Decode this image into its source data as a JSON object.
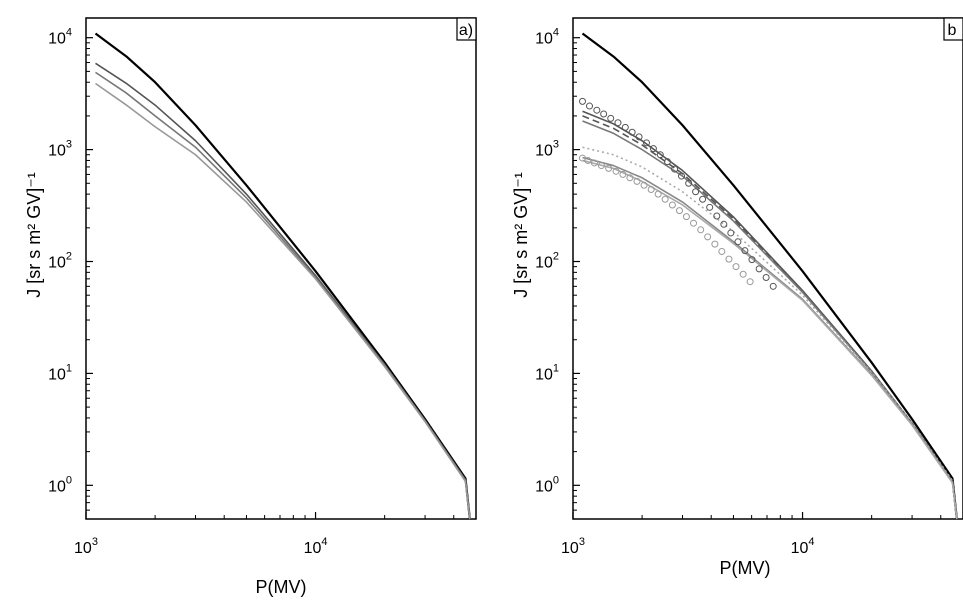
{
  "chart_data": [
    {
      "type": "line",
      "panel_label": "a)",
      "xlabel": "P(MV)",
      "ylabel": "J [sr s m² GV]⁻¹",
      "x_scale": "log",
      "y_scale": "log",
      "xlim": [
        1000,
        50000
      ],
      "ylim": [
        0.5,
        15000
      ],
      "x_ticks": [
        {
          "base": "10",
          "exp": "3"
        },
        {
          "base": "10",
          "exp": "4"
        }
      ],
      "y_ticks": [
        {
          "base": "10",
          "exp": "0"
        },
        {
          "base": "10",
          "exp": "1"
        },
        {
          "base": "10",
          "exp": "2"
        },
        {
          "base": "10",
          "exp": "3"
        },
        {
          "base": "10",
          "exp": "4"
        }
      ],
      "grid": false,
      "series": [
        {
          "color": "#000000",
          "style": "solid",
          "points": [
            [
              1100,
              10900
            ],
            [
              1500,
              6800
            ],
            [
              2000,
              4000
            ],
            [
              3000,
              1650
            ],
            [
              5000,
              480
            ],
            [
              10000,
              82
            ],
            [
              20000,
              12.5
            ],
            [
              30000,
              3.9
            ],
            [
              45000,
              1.15
            ],
            [
              47000,
              0.5
            ]
          ]
        },
        {
          "color": "#555555",
          "style": "solid",
          "points": [
            [
              1100,
              5900
            ],
            [
              1500,
              3900
            ],
            [
              2000,
              2500
            ],
            [
              3000,
              1200
            ],
            [
              5000,
              400
            ],
            [
              10000,
              75
            ],
            [
              20000,
              12
            ],
            [
              30000,
              3.8
            ],
            [
              45000,
              1.12
            ],
            [
              47000,
              0.5
            ]
          ]
        },
        {
          "color": "#777777",
          "style": "solid",
          "points": [
            [
              1100,
              4900
            ],
            [
              1500,
              3200
            ],
            [
              2000,
              2000
            ],
            [
              3000,
              1050
            ],
            [
              5000,
              370
            ],
            [
              10000,
              72
            ],
            [
              20000,
              11.8
            ],
            [
              30000,
              3.75
            ],
            [
              45000,
              1.1
            ],
            [
              47000,
              0.5
            ]
          ]
        },
        {
          "color": "#999999",
          "style": "solid",
          "points": [
            [
              1100,
              3900
            ],
            [
              1500,
              2500
            ],
            [
              2000,
              1600
            ],
            [
              3000,
              900
            ],
            [
              5000,
              340
            ],
            [
              10000,
              70
            ],
            [
              20000,
              11.5
            ],
            [
              30000,
              3.7
            ],
            [
              45000,
              1.08
            ],
            [
              47000,
              0.5
            ]
          ]
        }
      ]
    },
    {
      "type": "line",
      "panel_label": "b",
      "xlabel": "P(MV)",
      "ylabel": "J [sr s m² GV]⁻¹",
      "x_scale": "log",
      "y_scale": "log",
      "xlim": [
        1000,
        50000
      ],
      "ylim": [
        0.5,
        15000
      ],
      "x_ticks": [
        {
          "base": "10",
          "exp": "3"
        },
        {
          "base": "10",
          "exp": "4"
        }
      ],
      "y_ticks": [
        {
          "base": "10",
          "exp": "0"
        },
        {
          "base": "10",
          "exp": "1"
        },
        {
          "base": "10",
          "exp": "2"
        },
        {
          "base": "10",
          "exp": "3"
        },
        {
          "base": "10",
          "exp": "4"
        }
      ],
      "grid": false,
      "series": [
        {
          "color": "#000000",
          "style": "solid",
          "points": [
            [
              1100,
              10900
            ],
            [
              1500,
              6800
            ],
            [
              2000,
              4000
            ],
            [
              3000,
              1650
            ],
            [
              5000,
              480
            ],
            [
              10000,
              82
            ],
            [
              20000,
              12.5
            ],
            [
              30000,
              3.9
            ],
            [
              45000,
              1.15
            ],
            [
              47000,
              0.5
            ]
          ]
        },
        {
          "color": "#555555",
          "style": "solid",
          "points": [
            [
              1100,
              2200
            ],
            [
              1500,
              1700
            ],
            [
              2000,
              1200
            ],
            [
              3000,
              650
            ],
            [
              5000,
              250
            ],
            [
              10000,
              55
            ],
            [
              20000,
              10.5
            ],
            [
              30000,
              3.6
            ],
            [
              45000,
              1.08
            ],
            [
              47000,
              0.5
            ]
          ]
        },
        {
          "color": "#555555",
          "style": "dashed",
          "points": [
            [
              1100,
              2000
            ],
            [
              1500,
              1550
            ],
            [
              2000,
              1100
            ],
            [
              3000,
              610
            ],
            [
              5000,
              240
            ],
            [
              10000,
              54
            ],
            [
              20000,
              10.4
            ],
            [
              30000,
              3.6
            ],
            [
              45000,
              1.08
            ],
            [
              47000,
              0.5
            ]
          ]
        },
        {
          "color": "#777777",
          "style": "solid",
          "points": [
            [
              1100,
              1800
            ],
            [
              1500,
              1400
            ],
            [
              2000,
              1000
            ],
            [
              3000,
              580
            ],
            [
              5000,
              230
            ],
            [
              10000,
              53
            ],
            [
              20000,
              10.3
            ],
            [
              30000,
              3.55
            ],
            [
              45000,
              1.07
            ],
            [
              47000,
              0.5
            ]
          ]
        },
        {
          "color": "#aaaaaa",
          "style": "dotted",
          "points": [
            [
              1100,
              1050
            ],
            [
              1500,
              900
            ],
            [
              2000,
              700
            ],
            [
              3000,
              420
            ],
            [
              5000,
              185
            ],
            [
              10000,
              50
            ],
            [
              20000,
              10.2
            ],
            [
              30000,
              3.6
            ],
            [
              45000,
              1.1
            ],
            [
              47000,
              0.5
            ]
          ]
        },
        {
          "color": "#888888",
          "style": "solid",
          "points": [
            [
              1100,
              850
            ],
            [
              1500,
              720
            ],
            [
              2000,
              560
            ],
            [
              3000,
              340
            ],
            [
              5000,
              150
            ],
            [
              10000,
              46
            ],
            [
              20000,
              9.8
            ],
            [
              30000,
              3.5
            ],
            [
              45000,
              1.06
            ],
            [
              47000,
              0.5
            ]
          ]
        },
        {
          "color": "#aaaaaa",
          "style": "solid",
          "points": [
            [
              1100,
              800
            ],
            [
              1500,
              680
            ],
            [
              2000,
              520
            ],
            [
              3000,
              320
            ],
            [
              5000,
              145
            ],
            [
              10000,
              45
            ],
            [
              20000,
              9.6
            ],
            [
              30000,
              3.45
            ],
            [
              45000,
              1.05
            ],
            [
              47000,
              0.5
            ]
          ]
        },
        {
          "color": "#555555",
          "style": "markers",
          "points": [
            [
              1100,
              2700
            ],
            [
              1180,
              2450
            ],
            [
              1270,
              2250
            ],
            [
              1360,
              2080
            ],
            [
              1460,
              1900
            ],
            [
              1570,
              1740
            ],
            [
              1690,
              1580
            ],
            [
              1810,
              1430
            ],
            [
              1940,
              1300
            ],
            [
              2090,
              1150
            ],
            [
              2240,
              1020
            ],
            [
              2400,
              900
            ],
            [
              2580,
              780
            ],
            [
              2770,
              670
            ],
            [
              2970,
              580
            ],
            [
              3190,
              500
            ],
            [
              3420,
              420
            ],
            [
              3670,
              360
            ],
            [
              3940,
              305
            ],
            [
              4230,
              255
            ],
            [
              4540,
              215
            ],
            [
              4870,
              180
            ],
            [
              5230,
              150
            ],
            [
              5610,
              125
            ],
            [
              6020,
              104
            ],
            [
              6470,
              86
            ],
            [
              6940,
              72
            ],
            [
              7450,
              60
            ]
          ]
        },
        {
          "color": "#999999",
          "style": "markers",
          "points": [
            [
              1100,
              840
            ],
            [
              1160,
              800
            ],
            [
              1240,
              760
            ],
            [
              1330,
              720
            ],
            [
              1430,
              680
            ],
            [
              1540,
              640
            ],
            [
              1650,
              600
            ],
            [
              1770,
              560
            ],
            [
              1900,
              520
            ],
            [
              2040,
              480
            ],
            [
              2190,
              440
            ],
            [
              2350,
              400
            ],
            [
              2520,
              360
            ],
            [
              2710,
              320
            ],
            [
              2910,
              285
            ],
            [
              3120,
              252
            ],
            [
              3350,
              220
            ],
            [
              3600,
              192
            ],
            [
              3860,
              166
            ],
            [
              4150,
              143
            ],
            [
              4450,
              123
            ],
            [
              4780,
              105
            ],
            [
              5130,
              90
            ],
            [
              5510,
              77
            ],
            [
              5910,
              66
            ]
          ]
        }
      ]
    }
  ]
}
